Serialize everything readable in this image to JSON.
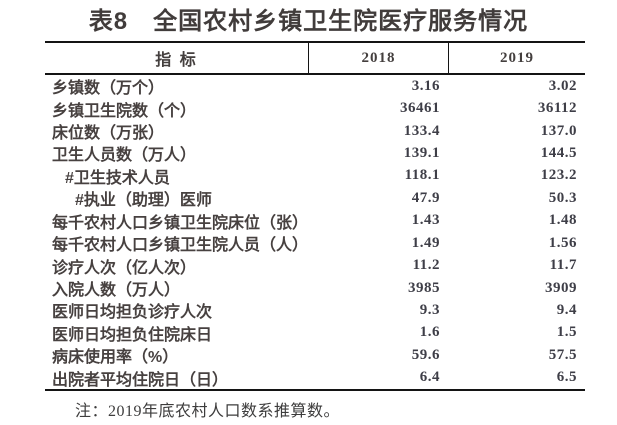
{
  "title": "表8　全国农村乡镇卫生院医疗服务情况",
  "table": {
    "header": {
      "indicator": "指 标",
      "col2018": "2018",
      "col2019": "2019"
    },
    "rows": [
      {
        "label": "乡镇数（万个）",
        "indent": 0,
        "y2018": "3.16",
        "y2019": "3.02"
      },
      {
        "label": "乡镇卫生院数（个）",
        "indent": 0,
        "y2018": "36461",
        "y2019": "36112"
      },
      {
        "label": "床位数（万张）",
        "indent": 0,
        "y2018": "133.4",
        "y2019": "137.0"
      },
      {
        "label": "卫生人员数（万人）",
        "indent": 0,
        "y2018": "139.1",
        "y2019": "144.5"
      },
      {
        "label": "#卫生技术人员",
        "indent": 1,
        "y2018": "118.1",
        "y2019": "123.2"
      },
      {
        "label": "#执业（助理）医师",
        "indent": 2,
        "y2018": "47.9",
        "y2019": "50.3"
      },
      {
        "label": "每千农村人口乡镇卫生院床位（张）",
        "indent": 0,
        "y2018": "1.43",
        "y2019": "1.48"
      },
      {
        "label": "每千农村人口乡镇卫生院人员（人）",
        "indent": 0,
        "y2018": "1.49",
        "y2019": "1.56"
      },
      {
        "label": "诊疗人次（亿人次）",
        "indent": 0,
        "y2018": "11.2",
        "y2019": "11.7"
      },
      {
        "label": "入院人数（万人）",
        "indent": 0,
        "y2018": "3985",
        "y2019": "3909"
      },
      {
        "label": "医师日均担负诊疗人次",
        "indent": 0,
        "y2018": "9.3",
        "y2019": "9.4"
      },
      {
        "label": "医师日均担负住院床日",
        "indent": 0,
        "y2018": "1.6",
        "y2019": "1.5"
      },
      {
        "label": "病床使用率（%）",
        "indent": 0,
        "y2018": "59.6",
        "y2019": "57.5"
      },
      {
        "label": "出院者平均住院日（日）",
        "indent": 0,
        "y2018": "6.4",
        "y2019": "6.5"
      }
    ]
  },
  "note": "注：2019年底农村人口数系推算数。",
  "colors": {
    "background": "#ffffff",
    "title_text": "#413c3b",
    "body_text": "#474140",
    "number_text": "#3e3e47",
    "rule": "#141414"
  },
  "chart_data": {
    "type": "table",
    "title": "表8　全国农村乡镇卫生院医疗服务情况",
    "columns": [
      "指 标",
      "2018",
      "2019"
    ],
    "rows": [
      [
        "乡镇数（万个）",
        "3.16",
        "3.02"
      ],
      [
        "乡镇卫生院数（个）",
        "36461",
        "36112"
      ],
      [
        "床位数（万张）",
        "133.4",
        "137.0"
      ],
      [
        "卫生人员数（万人）",
        "139.1",
        "144.5"
      ],
      [
        "#卫生技术人员",
        "118.1",
        "123.2"
      ],
      [
        "#执业（助理）医师",
        "47.9",
        "50.3"
      ],
      [
        "每千农村人口乡镇卫生院床位（张）",
        "1.43",
        "1.48"
      ],
      [
        "每千农村人口乡镇卫生院人员（人）",
        "1.49",
        "1.56"
      ],
      [
        "诊疗人次（亿人次）",
        "11.2",
        "11.7"
      ],
      [
        "入院人数（万人）",
        "3985",
        "3909"
      ],
      [
        "医师日均担负诊疗人次",
        "9.3",
        "9.4"
      ],
      [
        "医师日均担负住院床日",
        "1.6",
        "1.5"
      ],
      [
        "病床使用率（%）",
        "59.6",
        "57.5"
      ],
      [
        "出院者平均住院日（日）",
        "6.4",
        "6.5"
      ]
    ],
    "note": "注：2019年底农村人口数系推算数。"
  }
}
